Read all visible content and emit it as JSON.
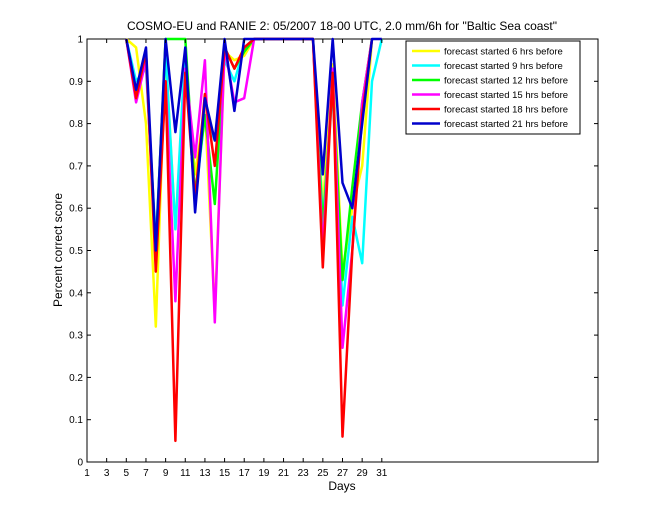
{
  "chart_data": {
    "type": "line",
    "title": "COSMO-EU and RANIE 2: 05/2007 18-00 UTC, 2.0 mm/6h for \"Baltic Sea coast\"",
    "xlabel": "Days",
    "ylabel": "Percent correct score",
    "xlim": [
      1,
      53
    ],
    "ylim": [
      0,
      1
    ],
    "xticks": [
      1,
      3,
      5,
      7,
      9,
      11,
      13,
      15,
      17,
      19,
      21,
      23,
      25,
      27,
      29,
      31
    ],
    "yticks": [
      0,
      0.1,
      0.2,
      0.3,
      0.4,
      0.5,
      0.6,
      0.7,
      0.8,
      0.9,
      1
    ],
    "xtick_labels": [
      "1",
      "3",
      "5",
      "7",
      "9",
      "11",
      "13",
      "15",
      "17",
      "19",
      "21",
      "23",
      "25",
      "27",
      "29",
      "31"
    ],
    "ytick_labels": [
      "0",
      "0.1",
      "0.2",
      "0.3",
      "0.4",
      "0.5",
      "0.6",
      "0.7",
      "0.8",
      "0.9",
      "1"
    ],
    "legend_position": "top-right",
    "series": [
      {
        "name": "forecast started 6 hrs before",
        "color": "#ffff00",
        "points": [
          [
            5,
            1
          ],
          [
            6,
            0.98
          ],
          [
            7,
            0.8
          ],
          [
            8,
            0.32
          ],
          [
            9,
            0.97
          ],
          [
            10,
            0.55
          ],
          [
            11,
            0.95
          ],
          [
            12,
            0.68
          ],
          [
            13,
            0.84
          ],
          [
            14,
            0.35
          ],
          [
            15,
            0.97
          ],
          [
            16,
            0.95
          ],
          [
            17,
            0.96
          ],
          [
            18,
            1
          ],
          [
            24,
            1
          ],
          [
            25,
            0.6
          ],
          [
            26,
            0.94
          ],
          [
            27,
            0.45
          ],
          [
            28,
            0.6
          ],
          [
            29,
            0.7
          ],
          [
            30,
            1
          ]
        ]
      },
      {
        "name": "forecast started 9 hrs before",
        "color": "#00ffff",
        "points": [
          [
            5,
            1
          ],
          [
            6,
            0.9
          ],
          [
            7,
            0.93
          ],
          [
            8,
            0.52
          ],
          [
            9,
            0.97
          ],
          [
            10,
            0.55
          ],
          [
            11,
            0.98
          ],
          [
            12,
            0.62
          ],
          [
            13,
            0.82
          ],
          [
            14,
            0.76
          ],
          [
            15,
            0.95
          ],
          [
            16,
            0.9
          ],
          [
            17,
            0.98
          ],
          [
            18,
            1
          ],
          [
            24,
            1
          ],
          [
            25,
            0.57
          ],
          [
            26,
            0.88
          ],
          [
            27,
            0.37
          ],
          [
            28,
            0.58
          ],
          [
            29,
            0.47
          ],
          [
            30,
            0.9
          ],
          [
            31,
            1
          ]
        ]
      },
      {
        "name": "forecast started 12 hrs before",
        "color": "#00ff00",
        "points": [
          [
            5,
            1
          ],
          [
            6,
            0.87
          ],
          [
            7,
            0.95
          ],
          [
            8,
            0.5
          ],
          [
            9,
            1
          ],
          [
            10,
            1
          ],
          [
            11,
            1
          ],
          [
            12,
            0.63
          ],
          [
            13,
            0.82
          ],
          [
            14,
            0.61
          ],
          [
            15,
            0.98
          ],
          [
            16,
            0.93
          ],
          [
            17,
            0.97
          ],
          [
            18,
            1
          ],
          [
            24,
            1
          ],
          [
            25,
            0.55
          ],
          [
            26,
            0.9
          ],
          [
            27,
            0.43
          ],
          [
            28,
            0.65
          ],
          [
            29,
            0.85
          ],
          [
            30,
            1
          ]
        ]
      },
      {
        "name": "forecast started 15 hrs before",
        "color": "#ff00ff",
        "points": [
          [
            5,
            1
          ],
          [
            6,
            0.85
          ],
          [
            7,
            0.95
          ],
          [
            8,
            0.48
          ],
          [
            9,
            0.9
          ],
          [
            10,
            0.38
          ],
          [
            11,
            0.93
          ],
          [
            12,
            0.72
          ],
          [
            13,
            0.95
          ],
          [
            14,
            0.33
          ],
          [
            15,
            0.98
          ],
          [
            16,
            0.85
          ],
          [
            17,
            0.86
          ],
          [
            18,
            1
          ],
          [
            24,
            1
          ],
          [
            25,
            0.5
          ],
          [
            26,
            0.93
          ],
          [
            27,
            0.27
          ],
          [
            28,
            0.5
          ],
          [
            29,
            0.85
          ],
          [
            30,
            1
          ]
        ]
      },
      {
        "name": "forecast started 18 hrs before",
        "color": "#ff0000",
        "points": [
          [
            5,
            1
          ],
          [
            6,
            0.86
          ],
          [
            7,
            0.97
          ],
          [
            8,
            0.45
          ],
          [
            9,
            0.9
          ],
          [
            10,
            0.05
          ],
          [
            11,
            0.92
          ],
          [
            12,
            0.62
          ],
          [
            13,
            0.87
          ],
          [
            14,
            0.7
          ],
          [
            15,
            0.98
          ],
          [
            16,
            0.93
          ],
          [
            17,
            0.98
          ],
          [
            18,
            1
          ],
          [
            24,
            1
          ],
          [
            25,
            0.46
          ],
          [
            26,
            0.92
          ],
          [
            27,
            0.06
          ],
          [
            28,
            0.5
          ],
          [
            29,
            0.82
          ],
          [
            30,
            1
          ]
        ]
      },
      {
        "name": "forecast started 21 hrs before",
        "color": "#0000cc",
        "points": [
          [
            5,
            1
          ],
          [
            6,
            0.88
          ],
          [
            7,
            0.98
          ],
          [
            8,
            0.5
          ],
          [
            9,
            1
          ],
          [
            10,
            0.78
          ],
          [
            11,
            0.98
          ],
          [
            12,
            0.59
          ],
          [
            13,
            0.86
          ],
          [
            14,
            0.76
          ],
          [
            15,
            1
          ],
          [
            16,
            0.83
          ],
          [
            17,
            1
          ],
          [
            18,
            1
          ],
          [
            24,
            1
          ],
          [
            25,
            0.68
          ],
          [
            26,
            1
          ],
          [
            27,
            0.66
          ],
          [
            28,
            0.6
          ],
          [
            29,
            0.8
          ],
          [
            30,
            1
          ],
          [
            31,
            1
          ]
        ]
      }
    ]
  }
}
